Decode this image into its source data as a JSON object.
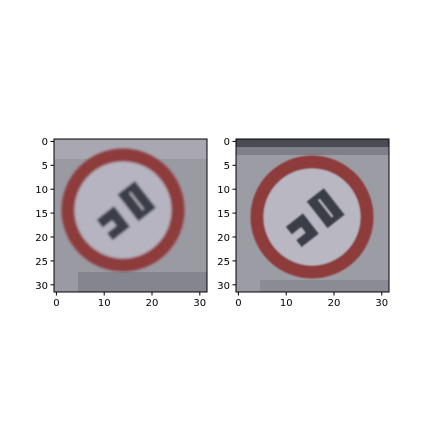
{
  "figure": {
    "background": "#ffffff",
    "panels": [
      {
        "id": "left",
        "xticks": [
          "0",
          "10",
          "20",
          "30"
        ],
        "yticks": [
          "0",
          "5",
          "10",
          "15",
          "20",
          "25",
          "30"
        ],
        "image": {
          "description": "32x32 pixelated traffic sign: red circle with diagonal '20' numerals, blurred",
          "sign_ring_color": "#8e3b3a",
          "sign_face_color": "#b6b4c0",
          "background_color": "#9a9aa3",
          "numeral_color": "#3b3c47"
        }
      },
      {
        "id": "right",
        "xticks": [
          "0",
          "10",
          "20",
          "30"
        ],
        "yticks": [
          "0",
          "5",
          "10",
          "15",
          "20",
          "25",
          "30"
        ],
        "image": {
          "description": "32x32 pixelated traffic sign: red circle with diagonal '20' numerals, slightly sharper",
          "sign_ring_color": "#8e3b3a",
          "sign_face_color": "#b8b7c2",
          "background_color": "#9c9ca5",
          "numeral_color": "#3b3c47"
        }
      }
    ]
  }
}
